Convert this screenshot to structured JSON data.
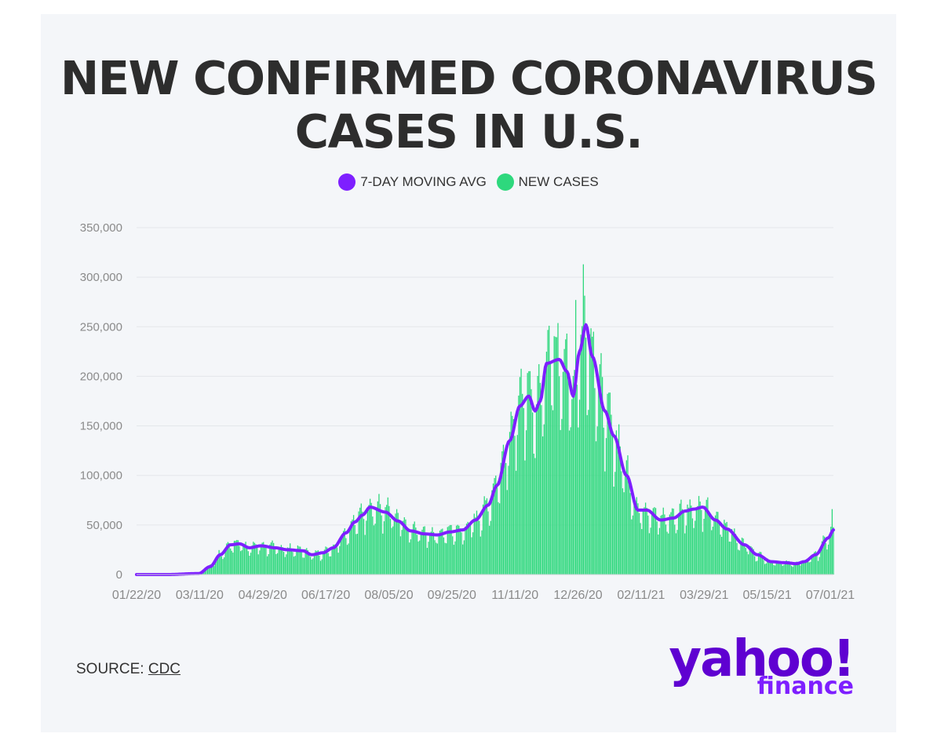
{
  "title_line1": "NEW CONFIRMED CORONAVIRUS",
  "title_line2": "CASES IN U.S.",
  "legend": [
    {
      "label": "7-DAY MOVING AVG",
      "color": "#7e1fff"
    },
    {
      "label": "NEW CASES",
      "color": "#2ed87d"
    }
  ],
  "source_label": "SOURCE: ",
  "source_link": "CDC",
  "logo": {
    "yahoo": "yahoo!",
    "finance": "finance"
  },
  "colors": {
    "bars": "#2ed87d",
    "line": "#7e1fff",
    "grid": "#e3e6ea",
    "background": "#f4f6f9"
  },
  "chart_data": {
    "type": "bar",
    "title": "NEW CONFIRMED CORONAVIRUS CASES IN U.S.",
    "xlabel": "",
    "ylabel": "",
    "ylim": [
      0,
      350000
    ],
    "y_ticks": [
      0,
      50000,
      100000,
      150000,
      200000,
      250000,
      300000,
      350000
    ],
    "y_tick_labels": [
      "0",
      "50,000",
      "100,000",
      "150,000",
      "200,000",
      "250,000",
      "300,000",
      "350,000"
    ],
    "x_tick_labels": [
      "01/22/20",
      "03/11/20",
      "04/29/20",
      "06/17/20",
      "08/05/20",
      "09/25/20",
      "11/11/20",
      "12/26/20",
      "02/11/21",
      "03/29/21",
      "05/15/21",
      "07/01/21"
    ],
    "grid": true,
    "legend_position": "top-center",
    "series": [
      {
        "name": "7-DAY MOVING AVG",
        "kind": "line",
        "points": [
          [
            "01/22/20",
            0
          ],
          [
            "02/15/20",
            0
          ],
          [
            "03/11/20",
            1000
          ],
          [
            "03/20/20",
            8000
          ],
          [
            "03/28/20",
            20000
          ],
          [
            "04/05/20",
            30000
          ],
          [
            "04/12/20",
            31000
          ],
          [
            "04/20/20",
            27000
          ],
          [
            "04/29/20",
            29000
          ],
          [
            "05/10/20",
            27000
          ],
          [
            "05/20/20",
            25000
          ],
          [
            "06/01/20",
            24000
          ],
          [
            "06/08/20",
            20000
          ],
          [
            "06/17/20",
            22000
          ],
          [
            "06/25/20",
            27000
          ],
          [
            "07/05/20",
            42000
          ],
          [
            "07/12/20",
            53000
          ],
          [
            "07/18/20",
            60000
          ],
          [
            "07/24/20",
            68000
          ],
          [
            "08/05/20",
            63000
          ],
          [
            "08/15/20",
            54000
          ],
          [
            "08/25/20",
            44000
          ],
          [
            "09/05/20",
            41000
          ],
          [
            "09/15/20",
            40000
          ],
          [
            "09/25/20",
            43000
          ],
          [
            "10/05/20",
            45000
          ],
          [
            "10/15/20",
            55000
          ],
          [
            "10/25/20",
            70000
          ],
          [
            "11/01/20",
            90000
          ],
          [
            "11/11/20",
            135000
          ],
          [
            "11/19/20",
            170000
          ],
          [
            "11/26/20",
            180000
          ],
          [
            "12/01/20",
            165000
          ],
          [
            "12/05/20",
            175000
          ],
          [
            "12/10/20",
            213000
          ],
          [
            "12/20/20",
            217000
          ],
          [
            "12/26/20",
            205000
          ],
          [
            "12/31/20",
            180000
          ],
          [
            "01/05/21",
            225000
          ],
          [
            "01/10/21",
            252000
          ],
          [
            "01/15/21",
            220000
          ],
          [
            "01/25/21",
            165000
          ],
          [
            "02/01/21",
            140000
          ],
          [
            "02/11/21",
            100000
          ],
          [
            "02/20/21",
            65000
          ],
          [
            "02/27/21",
            65000
          ],
          [
            "03/10/21",
            55000
          ],
          [
            "03/20/21",
            57000
          ],
          [
            "03/29/21",
            64000
          ],
          [
            "04/05/21",
            66000
          ],
          [
            "04/12/21",
            68000
          ],
          [
            "04/22/21",
            55000
          ],
          [
            "05/01/21",
            46000
          ],
          [
            "05/15/21",
            30000
          ],
          [
            "05/25/21",
            20000
          ],
          [
            "06/05/21",
            13000
          ],
          [
            "06/15/21",
            12000
          ],
          [
            "06/25/21",
            11000
          ],
          [
            "07/01/21",
            13000
          ],
          [
            "07/10/21",
            20000
          ],
          [
            "07/20/21",
            37000
          ],
          [
            "07/24/21",
            45000
          ]
        ]
      },
      {
        "name": "NEW CASES",
        "kind": "bar",
        "description_values": "daily counts closely follow the moving average with weekly oscillation; peak ~313,000 near 01/08/21; last values ~65,000 near 07/24/21"
      }
    ]
  }
}
